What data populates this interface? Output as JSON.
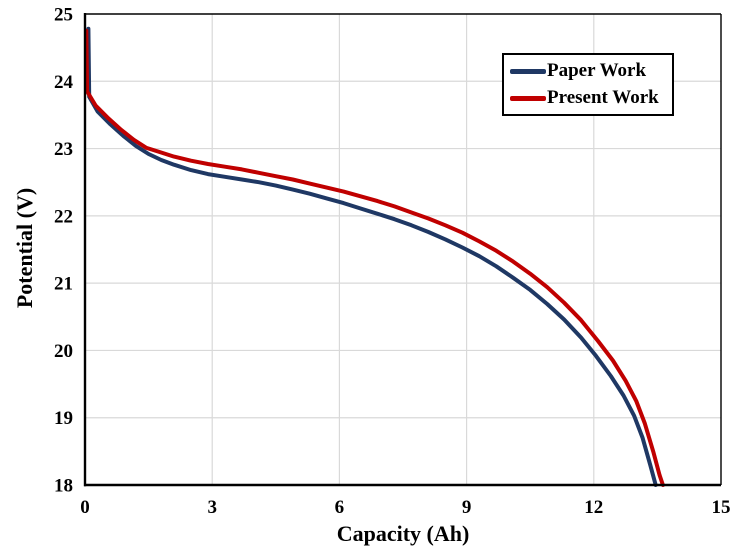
{
  "chart_data": {
    "type": "line",
    "title": "",
    "xlabel": "Capacity (Ah)",
    "ylabel": "Potential (V)",
    "xlim": [
      0,
      15
    ],
    "ylim": [
      18,
      25
    ],
    "xticks": [
      0,
      3,
      6,
      9,
      12,
      15
    ],
    "yticks": [
      18,
      19,
      20,
      21,
      22,
      23,
      24,
      25
    ],
    "grid": true,
    "grid_color": "#d9d9d9",
    "axis_color": "#000000",
    "background_color": "#ffffff",
    "legend_position": "top-right",
    "series": [
      {
        "name": "Paper Work",
        "color": "#1f3864",
        "points": [
          [
            0.08,
            24.78
          ],
          [
            0.1,
            23.77
          ],
          [
            0.3,
            23.55
          ],
          [
            0.6,
            23.36
          ],
          [
            0.9,
            23.19
          ],
          [
            1.2,
            23.04
          ],
          [
            1.5,
            22.92
          ],
          [
            1.8,
            22.83
          ],
          [
            2.1,
            22.76
          ],
          [
            2.5,
            22.68
          ],
          [
            2.9,
            22.62
          ],
          [
            3.3,
            22.58
          ],
          [
            3.7,
            22.54
          ],
          [
            4.1,
            22.5
          ],
          [
            4.5,
            22.45
          ],
          [
            4.9,
            22.39
          ],
          [
            5.3,
            22.33
          ],
          [
            5.7,
            22.26
          ],
          [
            6.1,
            22.19
          ],
          [
            6.5,
            22.11
          ],
          [
            6.9,
            22.03
          ],
          [
            7.3,
            21.95
          ],
          [
            7.7,
            21.86
          ],
          [
            8.1,
            21.76
          ],
          [
            8.5,
            21.65
          ],
          [
            8.9,
            21.53
          ],
          [
            9.3,
            21.4
          ],
          [
            9.7,
            21.25
          ],
          [
            10.1,
            21.08
          ],
          [
            10.5,
            20.9
          ],
          [
            10.9,
            20.69
          ],
          [
            11.3,
            20.46
          ],
          [
            11.7,
            20.19
          ],
          [
            12.05,
            19.92
          ],
          [
            12.4,
            19.62
          ],
          [
            12.7,
            19.33
          ],
          [
            12.95,
            19.03
          ],
          [
            13.15,
            18.7
          ],
          [
            13.33,
            18.3
          ],
          [
            13.46,
            18
          ]
        ]
      },
      {
        "name": "Present Work",
        "color": "#c00000",
        "points": [
          [
            0.03,
            24.75
          ],
          [
            0.05,
            23.85
          ],
          [
            0.25,
            23.64
          ],
          [
            0.55,
            23.45
          ],
          [
            0.85,
            23.28
          ],
          [
            1.15,
            23.13
          ],
          [
            1.45,
            23.01
          ],
          [
            1.75,
            22.95
          ],
          [
            2.1,
            22.88
          ],
          [
            2.5,
            22.82
          ],
          [
            2.9,
            22.77
          ],
          [
            3.3,
            22.73
          ],
          [
            3.7,
            22.69
          ],
          [
            4.1,
            22.64
          ],
          [
            4.5,
            22.59
          ],
          [
            4.9,
            22.54
          ],
          [
            5.3,
            22.48
          ],
          [
            5.7,
            22.42
          ],
          [
            6.1,
            22.36
          ],
          [
            6.5,
            22.29
          ],
          [
            6.9,
            22.22
          ],
          [
            7.3,
            22.14
          ],
          [
            7.7,
            22.05
          ],
          [
            8.1,
            21.96
          ],
          [
            8.5,
            21.86
          ],
          [
            8.9,
            21.75
          ],
          [
            9.3,
            21.62
          ],
          [
            9.7,
            21.48
          ],
          [
            10.1,
            21.32
          ],
          [
            10.5,
            21.14
          ],
          [
            10.9,
            20.94
          ],
          [
            11.3,
            20.71
          ],
          [
            11.7,
            20.45
          ],
          [
            12.1,
            20.14
          ],
          [
            12.45,
            19.85
          ],
          [
            12.75,
            19.55
          ],
          [
            13,
            19.25
          ],
          [
            13.2,
            18.92
          ],
          [
            13.4,
            18.5
          ],
          [
            13.55,
            18.15
          ],
          [
            13.63,
            18
          ]
        ]
      }
    ]
  }
}
